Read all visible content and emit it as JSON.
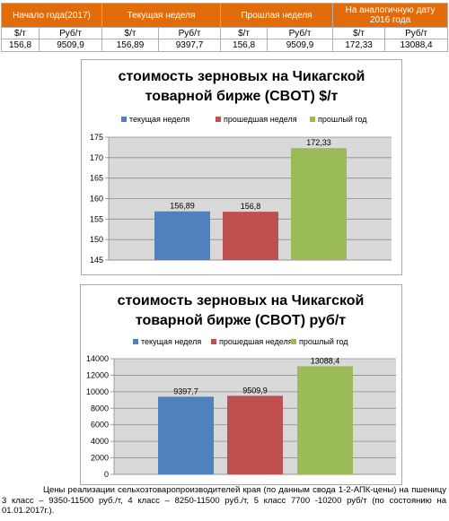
{
  "table": {
    "headers": [
      "Начало года(2017)",
      "Текущая неделя",
      "Прошлая неделя",
      "На аналогичную дату 2016 года"
    ],
    "units": [
      "$/т",
      "Руб/т",
      "$/т",
      "Руб/т",
      "$/т",
      "Руб/т",
      "$/т",
      "Руб/т"
    ],
    "values": [
      "156,8",
      "9509,9",
      "156,89",
      "9397,7",
      "156,8",
      "9509,9",
      "172,33",
      "13088,4"
    ]
  },
  "chart_data": [
    {
      "type": "bar",
      "title": "стоимость зерновых на Чикагской товарной бирже (CBOT) $/т",
      "title_lines": [
        "стоимость зерновых на Чикагской",
        "товарной бирже (CBOT) $/т"
      ],
      "series": [
        {
          "name": "текущая неделя",
          "values": [
            156.89
          ],
          "label": "156,89",
          "color": "#4f81bd"
        },
        {
          "name": "прошедшая неделя",
          "values": [
            156.8
          ],
          "label": "156,8",
          "color": "#c0504d"
        },
        {
          "name": "прошлый год",
          "values": [
            172.33
          ],
          "label": "172,33",
          "color": "#9bbb59"
        }
      ],
      "ylim": [
        145,
        175
      ],
      "yticks": [
        145,
        150,
        155,
        160,
        165,
        170,
        175
      ],
      "ytick_labels": [
        "145",
        "150",
        "155",
        "160",
        "165",
        "170",
        "175"
      ],
      "grid": true,
      "legend": "top"
    },
    {
      "type": "bar",
      "title": "стоимость зерновых на Чикагской товарной бирже (CBOT) руб/т",
      "title_lines": [
        "стоимость зерновых на Чикагской",
        "товарной бирже (CBOT) руб/т"
      ],
      "series": [
        {
          "name": "текущая неделя",
          "values": [
            9397.7
          ],
          "label": "9397,7",
          "color": "#4f81bd"
        },
        {
          "name": "прошедшая неделя",
          "values": [
            9509.9
          ],
          "label": "9509,9",
          "color": "#c0504d"
        },
        {
          "name": "прошлый год",
          "values": [
            13088.4
          ],
          "label": "13088,4",
          "color": "#9bbb59"
        }
      ],
      "ylim": [
        0,
        14000
      ],
      "yticks": [
        0,
        2000,
        4000,
        6000,
        8000,
        10000,
        12000,
        14000
      ],
      "ytick_labels": [
        "0",
        "2000",
        "4000",
        "6000",
        "8000",
        "10000",
        "12000",
        "14000"
      ],
      "grid": true,
      "legend": "top"
    }
  ],
  "footnote": "Цены реализации сельхозтоваропроизводителей края (по данным свода 1-2-АПК-цены) на пшеницу 3 класс – 9350-11500 руб./т, 4 класс – 8250-11500 руб./т, 5 класс 7700 -10200 руб/т (по состоянию на 01.01.2017г.)."
}
